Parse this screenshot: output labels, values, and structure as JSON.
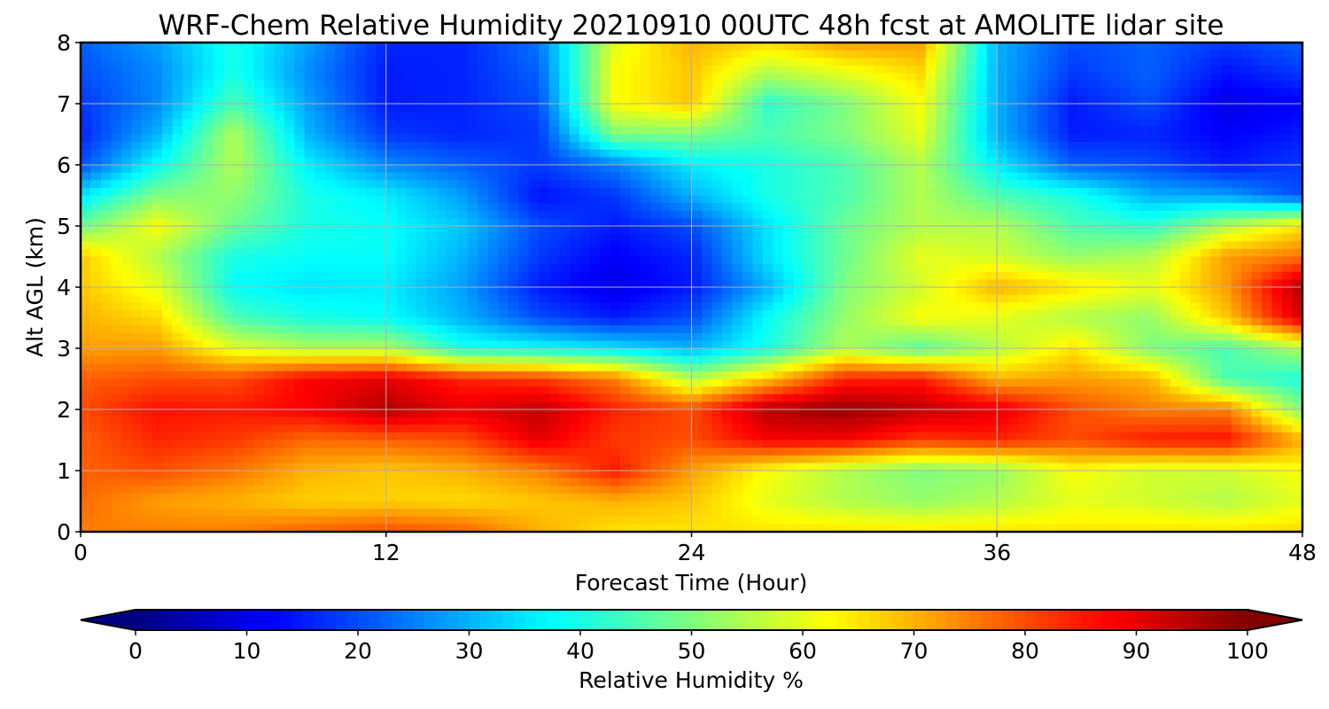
{
  "chart_data": {
    "type": "heatmap",
    "title": "WRF-Chem Relative Humidity 20210910 00UTC 48h fcst at AMOLITE lidar site",
    "xlabel": "Forecast Time (Hour)",
    "ylabel": "Alt AGL (km)",
    "xlim": [
      0,
      48
    ],
    "ylim": [
      0,
      8
    ],
    "xticks": [
      0,
      12,
      24,
      36,
      48
    ],
    "yticks": [
      0,
      1,
      2,
      3,
      4,
      5,
      6,
      7,
      8
    ],
    "grid": true,
    "colormap": "jet",
    "colorbar": {
      "label": "Relative Humidity %",
      "ticks": [
        0,
        10,
        20,
        30,
        40,
        50,
        60,
        70,
        80,
        90,
        100
      ],
      "range": [
        0,
        100
      ],
      "extend": "both",
      "orientation": "horizontal",
      "placement": "bottom"
    },
    "x": [
      0,
      3,
      6,
      9,
      12,
      15,
      18,
      21,
      24,
      27,
      30,
      33,
      36,
      39,
      42,
      45,
      48
    ],
    "y": [
      0,
      0.5,
      1,
      1.5,
      2,
      2.5,
      3,
      3.5,
      4,
      4.5,
      5,
      5.5,
      6,
      6.5,
      7,
      7.5,
      8
    ],
    "z": [
      [
        75,
        75,
        75,
        78,
        80,
        78,
        70,
        65,
        65,
        65,
        65,
        65,
        65,
        65,
        65,
        65,
        66
      ],
      [
        77,
        72,
        70,
        67,
        67,
        66,
        68,
        70,
        68,
        60,
        55,
        52,
        55,
        60,
        58,
        55,
        60
      ],
      [
        78,
        80,
        76,
        70,
        68,
        70,
        75,
        85,
        72,
        62,
        55,
        50,
        52,
        62,
        58,
        58,
        62
      ],
      [
        78,
        84,
        82,
        77,
        78,
        80,
        90,
        82,
        80,
        88,
        88,
        82,
        84,
        80,
        85,
        86,
        70
      ],
      [
        80,
        86,
        85,
        88,
        95,
        90,
        94,
        84,
        80,
        95,
        98,
        94,
        90,
        80,
        75,
        75,
        50
      ],
      [
        78,
        80,
        80,
        88,
        90,
        84,
        82,
        75,
        55,
        68,
        84,
        85,
        70,
        72,
        70,
        45,
        40
      ],
      [
        72,
        72,
        60,
        55,
        55,
        40,
        38,
        35,
        30,
        40,
        55,
        46,
        55,
        65,
        50,
        45,
        55
      ],
      [
        70,
        66,
        45,
        40,
        38,
        30,
        20,
        15,
        20,
        38,
        52,
        62,
        60,
        55,
        52,
        68,
        92
      ],
      [
        68,
        60,
        38,
        35,
        36,
        28,
        15,
        10,
        15,
        30,
        50,
        58,
        70,
        65,
        60,
        72,
        96
      ],
      [
        68,
        55,
        40,
        38,
        38,
        30,
        18,
        12,
        16,
        35,
        48,
        60,
        58,
        52,
        55,
        72,
        76
      ],
      [
        48,
        62,
        48,
        40,
        38,
        32,
        20,
        15,
        20,
        35,
        48,
        55,
        55,
        45,
        42,
        55,
        65
      ],
      [
        35,
        50,
        52,
        40,
        36,
        28,
        14,
        18,
        30,
        40,
        45,
        55,
        45,
        40,
        30,
        28,
        20
      ],
      [
        20,
        38,
        55,
        36,
        26,
        22,
        18,
        25,
        36,
        40,
        45,
        55,
        36,
        22,
        20,
        15,
        18
      ],
      [
        16,
        30,
        55,
        30,
        18,
        16,
        18,
        50,
        50,
        45,
        50,
        60,
        30,
        15,
        16,
        12,
        15
      ],
      [
        18,
        26,
        45,
        28,
        15,
        16,
        20,
        62,
        68,
        42,
        50,
        62,
        30,
        15,
        20,
        10,
        12
      ],
      [
        20,
        26,
        40,
        26,
        15,
        16,
        22,
        62,
        68,
        55,
        60,
        66,
        30,
        18,
        22,
        14,
        18
      ],
      [
        22,
        28,
        40,
        28,
        16,
        16,
        24,
        60,
        70,
        66,
        72,
        72,
        30,
        20,
        22,
        18,
        22
      ]
    ]
  }
}
